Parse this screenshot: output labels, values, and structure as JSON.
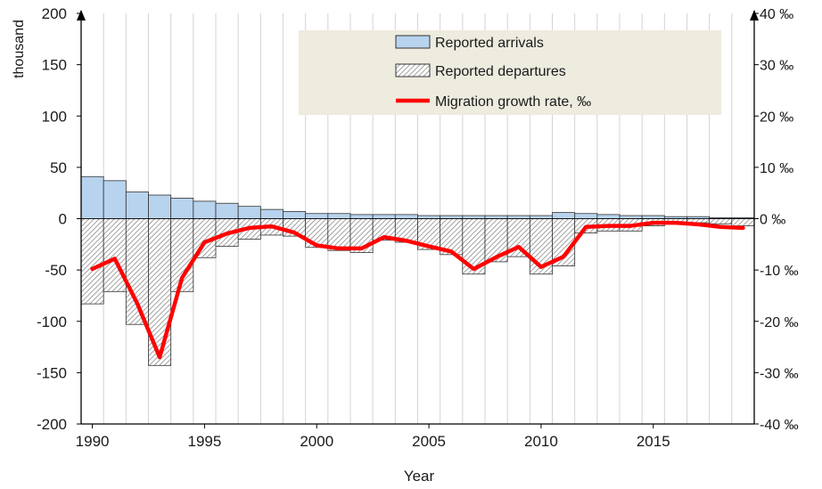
{
  "chart_data": {
    "type": "bar",
    "ylabel": "thousand",
    "xlabel": "Year",
    "x": [
      1990,
      1991,
      1992,
      1993,
      1994,
      1995,
      1996,
      1997,
      1998,
      1999,
      2000,
      2001,
      2002,
      2003,
      2004,
      2005,
      2006,
      2007,
      2008,
      2009,
      2010,
      2011,
      2012,
      2013,
      2014,
      2015,
      2016,
      2017,
      2018,
      2019
    ],
    "x_ticks": [
      "1990",
      "1995",
      "2000",
      "2005",
      "2010",
      "2015"
    ],
    "ylim": [
      -200,
      200
    ],
    "y_ticks": [
      "200",
      "150",
      "100",
      "50",
      "0",
      "-50",
      "-100",
      "-150",
      "-200"
    ],
    "y2lim": [
      -40,
      40
    ],
    "y2_ticks": [
      "40 ‰",
      "30 ‰",
      "20 ‰",
      "10 ‰",
      "0 ‰",
      "-10 ‰",
      "-20 ‰",
      "-30 ‰",
      "-40 ‰"
    ],
    "grid": "vertical",
    "legend_position": "top-right",
    "series": [
      {
        "name": "Reported arrivals",
        "kind": "bar",
        "axis": "left",
        "color": "#b8d3ee",
        "values": [
          41,
          37,
          26,
          23,
          20,
          17,
          15,
          12,
          9,
          7,
          5,
          5,
          4,
          4,
          4,
          3,
          3,
          3,
          3,
          3,
          3,
          6,
          5,
          4,
          3,
          3,
          2,
          2,
          1,
          1
        ]
      },
      {
        "name": "Reported departures",
        "kind": "bar",
        "axis": "left",
        "color": "#d9d9d9",
        "values": [
          -83,
          -71,
          -103,
          -143,
          -71,
          -38,
          -27,
          -20,
          -16,
          -17,
          -28,
          -31,
          -33,
          -21,
          -23,
          -30,
          -35,
          -54,
          -42,
          -37,
          -54,
          -46,
          -14,
          -12,
          -12,
          -7,
          -5,
          -4,
          -5,
          -7
        ]
      },
      {
        "name": "Migration growth rate, ‰",
        "kind": "line",
        "axis": "right",
        "color": "#ff0000",
        "values": [
          -9.8,
          -7.8,
          -16.5,
          -27,
          -11.5,
          -4.6,
          -2.9,
          -1.8,
          -1.5,
          -2.7,
          -5.2,
          -5.8,
          -5.8,
          -3.6,
          -4.3,
          -5.4,
          -6.4,
          -9.8,
          -7.5,
          -5.5,
          -9.4,
          -7.4,
          -1.6,
          -1.4,
          -1.4,
          -0.8,
          -0.8,
          -1.1,
          -1.6,
          -1.8
        ]
      }
    ]
  },
  "colors": {
    "legend_bg": "#eeebdf",
    "arrivals_edge": "#333333",
    "departures_edge": "#333333",
    "line": "#ff0000",
    "grid": "#d4d4d4",
    "axis": "#000000"
  }
}
